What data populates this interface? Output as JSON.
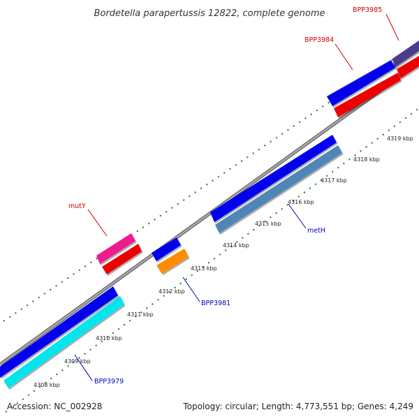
{
  "title": "Bordetella parapertussis 12822, complete genome",
  "footer": {
    "accession": "Accession: NC_002928",
    "summary": "Topology: circular; Length: 4,773,551 bp; Genes: 4,249"
  },
  "tick_labels": [
    "4308 kbp",
    "4309 kbp",
    "4310 kbp",
    "4311 kbp",
    "4312 kbp",
    "4313 kbp",
    "4314 kbp",
    "4315 kbp",
    "4316 kbp",
    "4317 kbp",
    "4318 kbp",
    "4319 kbp"
  ],
  "gene_labels": [
    {
      "text": "BPP3985",
      "color": "#cc0000"
    },
    {
      "text": "BPP3984",
      "color": "#cc0000"
    },
    {
      "text": "mutY",
      "color": "#cc0000"
    },
    {
      "text": "metH",
      "color": "#0000bb"
    },
    {
      "text": "BPP3981",
      "color": "#0000bb"
    },
    {
      "text": "BPP3979",
      "color": "#0000bb"
    }
  ],
  "colors": {
    "backbone": "#8a8a8a",
    "tick": "#1a7a1a",
    "forward_gene": "#0000ee",
    "reverse_gene": "#ee0000",
    "mutY": "#ee1c8c",
    "BPP3979": "#00e5ee",
    "metH": "#4f86b8",
    "BPP3981_partner": "#ff8c00",
    "BPP3985": "#4b3a8a"
  }
}
